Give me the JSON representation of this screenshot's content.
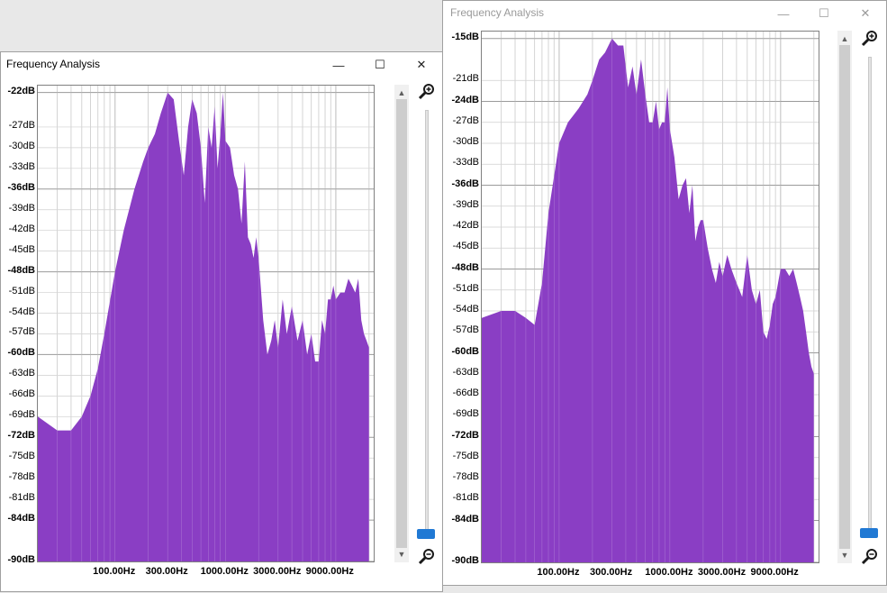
{
  "colors": {
    "spectrum": "#8a3ec4",
    "grid": "#c0c0c0",
    "slider": "#2079d4"
  },
  "windows": [
    {
      "title": "Frequency Analysis",
      "state": "active",
      "buttons": {
        "minimize": "—",
        "maximize": "☐",
        "close": "✕"
      },
      "scroll": {
        "up": "▲",
        "down": "▼"
      },
      "y_labels": [
        {
          "text": "-22dB",
          "bold": true
        },
        {
          "text": "-27dB",
          "bold": false
        },
        {
          "text": "-30dB",
          "bold": false
        },
        {
          "text": "-33dB",
          "bold": false
        },
        {
          "text": "-36dB",
          "bold": true
        },
        {
          "text": "-39dB",
          "bold": false
        },
        {
          "text": "-42dB",
          "bold": false
        },
        {
          "text": "-45dB",
          "bold": false
        },
        {
          "text": "-48dB",
          "bold": true
        },
        {
          "text": "-51dB",
          "bold": false
        },
        {
          "text": "-54dB",
          "bold": false
        },
        {
          "text": "-57dB",
          "bold": false
        },
        {
          "text": "-60dB",
          "bold": true
        },
        {
          "text": "-63dB",
          "bold": false
        },
        {
          "text": "-66dB",
          "bold": false
        },
        {
          "text": "-69dB",
          "bold": false
        },
        {
          "text": "-72dB",
          "bold": true
        },
        {
          "text": "-75dB",
          "bold": false
        },
        {
          "text": "-78dB",
          "bold": false
        },
        {
          "text": "-81dB",
          "bold": false
        },
        {
          "text": "-84dB",
          "bold": true
        },
        {
          "text": "-90dB",
          "bold": true
        }
      ],
      "x_labels": [
        "100.00Hz",
        "300.00Hz",
        "1000.00Hz",
        "3000.00Hz",
        "9000.00Hz"
      ],
      "zoom_level": 0.0
    },
    {
      "title": "Frequency Analysis",
      "state": "inactive",
      "buttons": {
        "minimize": "—",
        "maximize": "☐",
        "close": "✕"
      },
      "scroll": {
        "up": "▲",
        "down": "▼"
      },
      "y_labels": [
        {
          "text": "-15dB",
          "bold": true
        },
        {
          "text": "-21dB",
          "bold": false
        },
        {
          "text": "-24dB",
          "bold": true
        },
        {
          "text": "-27dB",
          "bold": false
        },
        {
          "text": "-30dB",
          "bold": false
        },
        {
          "text": "-33dB",
          "bold": false
        },
        {
          "text": "-36dB",
          "bold": true
        },
        {
          "text": "-39dB",
          "bold": false
        },
        {
          "text": "-42dB",
          "bold": false
        },
        {
          "text": "-45dB",
          "bold": false
        },
        {
          "text": "-48dB",
          "bold": true
        },
        {
          "text": "-51dB",
          "bold": false
        },
        {
          "text": "-54dB",
          "bold": false
        },
        {
          "text": "-57dB",
          "bold": false
        },
        {
          "text": "-60dB",
          "bold": true
        },
        {
          "text": "-63dB",
          "bold": false
        },
        {
          "text": "-66dB",
          "bold": false
        },
        {
          "text": "-69dB",
          "bold": false
        },
        {
          "text": "-72dB",
          "bold": true
        },
        {
          "text": "-75dB",
          "bold": false
        },
        {
          "text": "-78dB",
          "bold": false
        },
        {
          "text": "-81dB",
          "bold": false
        },
        {
          "text": "-84dB",
          "bold": true
        },
        {
          "text": "-90dB",
          "bold": true
        }
      ],
      "x_labels": [
        "100.00Hz",
        "300.00Hz",
        "1000.00Hz",
        "3000.00Hz",
        "9000.00Hz"
      ],
      "zoom_level": 0.0
    }
  ],
  "chart_data": [
    {
      "type": "area",
      "x_scale": "log",
      "xlim": [
        20,
        22050
      ],
      "ylim": [
        -90,
        -21
      ],
      "x_ticks": [
        "100.00Hz",
        "300.00Hz",
        "1000.00Hz",
        "3000.00Hz",
        "9000.00Hz"
      ],
      "x": [
        20,
        30,
        40,
        50,
        60,
        70,
        80,
        100,
        120,
        150,
        180,
        200,
        230,
        260,
        300,
        340,
        380,
        420,
        460,
        500,
        550,
        600,
        650,
        700,
        750,
        800,
        850,
        900,
        950,
        1000,
        1100,
        1200,
        1300,
        1400,
        1500,
        1600,
        1700,
        1800,
        1900,
        2000,
        2200,
        2400,
        2600,
        2800,
        3000,
        3300,
        3600,
        4000,
        4500,
        5000,
        5500,
        6000,
        6500,
        7000,
        7500,
        8000,
        8500,
        9000,
        9500,
        10000,
        11000,
        12000,
        13000,
        14000,
        15000,
        16000,
        17000,
        18000,
        19000,
        20000
      ],
      "y": [
        -69,
        -71,
        -71,
        -69,
        -66,
        -62,
        -57,
        -48,
        -42,
        -36,
        -32,
        -30,
        -28,
        -25,
        -22,
        -23,
        -29,
        -34,
        -27,
        -23,
        -25,
        -30,
        -38,
        -27,
        -30,
        -24,
        -33,
        -28,
        -22,
        -29,
        -30,
        -34,
        -36,
        -41,
        -32,
        -43,
        -44,
        -46,
        -43,
        -46,
        -55,
        -60,
        -58,
        -55,
        -59,
        -52,
        -57,
        -53,
        -58,
        -55,
        -60,
        -57,
        -61,
        -61,
        -55,
        -57,
        -52,
        -52,
        -50,
        -52,
        -51,
        -51,
        -49,
        -50,
        -51,
        -49,
        -55,
        -57,
        -58,
        -59
      ]
    },
    {
      "type": "area",
      "x_scale": "log",
      "xlim": [
        20,
        22050
      ],
      "ylim": [
        -90,
        -14
      ],
      "x_ticks": [
        "100.00Hz",
        "300.00Hz",
        "1000.00Hz",
        "3000.00Hz",
        "9000.00Hz"
      ],
      "x": [
        20,
        30,
        40,
        50,
        60,
        70,
        80,
        100,
        120,
        150,
        180,
        200,
        230,
        260,
        300,
        340,
        380,
        420,
        460,
        500,
        550,
        600,
        650,
        700,
        750,
        800,
        850,
        900,
        950,
        1000,
        1100,
        1200,
        1300,
        1400,
        1500,
        1600,
        1700,
        1800,
        1900,
        2000,
        2200,
        2400,
        2600,
        2800,
        3000,
        3300,
        3600,
        4000,
        4500,
        5000,
        5500,
        6000,
        6500,
        7000,
        7500,
        8000,
        8500,
        9000,
        9500,
        10000,
        11000,
        12000,
        13000,
        14000,
        15000,
        16000,
        17000,
        18000,
        19000,
        20000
      ],
      "y": [
        -55,
        -54,
        -54,
        -55,
        -56,
        -50,
        -40,
        -30,
        -27,
        -25,
        -23,
        -21,
        -18,
        -17,
        -15,
        -16,
        -16,
        -22,
        -19,
        -23,
        -18,
        -23,
        -27,
        -27,
        -24,
        -28,
        -27,
        -27,
        -22,
        -28,
        -32,
        -38,
        -36,
        -35,
        -40,
        -36,
        -44,
        -42,
        -41,
        -41,
        -45,
        -48,
        -50,
        -47,
        -49,
        -46,
        -48,
        -50,
        -52,
        -46,
        -51,
        -53,
        -51,
        -57,
        -58,
        -56,
        -53,
        -52,
        -50,
        -48,
        -48,
        -49,
        -48,
        -50,
        -52,
        -54,
        -57,
        -60,
        -62,
        -63
      ]
    }
  ]
}
